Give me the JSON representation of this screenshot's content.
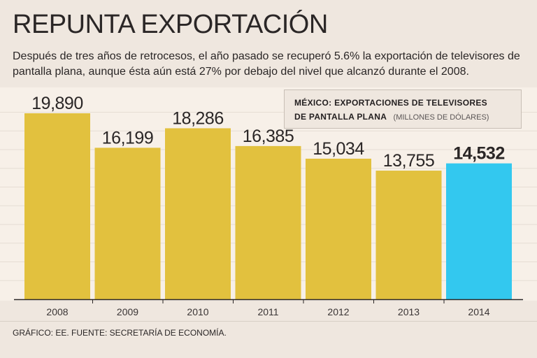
{
  "header": {
    "title": "REPUNTA EXPORTACIÓN",
    "subtitle": "Después de tres años de retrocesos, el año pasado se recuperó 5.6% la exportación de televisores de pantalla plana, aunque ésta aún está 27%  por debajo del nivel que alcanzó durante el 2008."
  },
  "legend": {
    "line1": "MÉXICO: EXPORTACIONES DE TELEVISORES",
    "line2": "DE PANTALLA PLANA",
    "unit": "(MILLONES DE DÓLARES)"
  },
  "footer": {
    "source": "GRÁFICO: EE. FUENTE: SECRETARÍA DE ECONOMÍA."
  },
  "chart_data": {
    "type": "bar",
    "title": "MÉXICO: EXPORTACIONES DE TELEVISORES DE PANTALLA PLANA (MILLONES DE DÓLARES)",
    "categories": [
      "2008",
      "2009",
      "2010",
      "2011",
      "2012",
      "2013",
      "2014"
    ],
    "values": [
      19890,
      16199,
      18286,
      16385,
      15034,
      13755,
      14532
    ],
    "value_labels": [
      "19,890",
      "16,199",
      "18,286",
      "16,385",
      "15,034",
      "13,755",
      "14,532"
    ],
    "highlight_index": 6,
    "colors": {
      "bar": "#e2c13e",
      "highlight": "#33c8ef",
      "axis": "#2a2626",
      "grid": "#e6ddd4"
    },
    "ylim": [
      0,
      21000
    ],
    "xlabel": "",
    "ylabel": ""
  }
}
